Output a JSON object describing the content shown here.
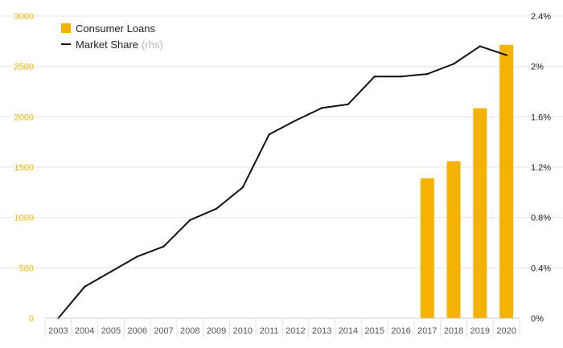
{
  "chart_data": {
    "type": "bar+line",
    "categories": [
      "2003",
      "2004",
      "2005",
      "2006",
      "2007",
      "2008",
      "2009",
      "2010",
      "2011",
      "2012",
      "2013",
      "2014",
      "2015",
      "2016",
      "2017",
      "2018",
      "2019",
      "2020"
    ],
    "series": [
      {
        "name": "Consumer Loans",
        "type": "bar",
        "axis": "left",
        "color": "#F5B300",
        "values": [
          0,
          0,
          0,
          0,
          0,
          0,
          0,
          0,
          0,
          0,
          0,
          0,
          0,
          0,
          1390,
          1560,
          2085,
          2715
        ]
      },
      {
        "name": "Market Share",
        "type": "line",
        "axis": "right",
        "color": "#111111",
        "values": [
          0.0,
          0.25,
          0.37,
          0.49,
          0.57,
          0.78,
          0.87,
          1.04,
          1.46,
          1.57,
          1.67,
          1.7,
          1.92,
          1.92,
          1.94,
          2.02,
          2.16,
          2.09
        ]
      }
    ],
    "legend": {
      "position": "top-left",
      "items": [
        {
          "label": "Consumer Loans",
          "note": "",
          "marker": "square",
          "color": "#F5B300"
        },
        {
          "label": "Market Share",
          "note": "(rhs)",
          "marker": "line",
          "color": "#111111"
        }
      ]
    },
    "y_left": {
      "ylim": [
        0,
        3000
      ],
      "ticks": [
        0,
        500,
        1000,
        1500,
        2000,
        2500,
        3000
      ],
      "tick_labels": [
        "0",
        "500",
        "1000",
        "1500",
        "2000",
        "2500",
        "3000"
      ],
      "color": "#F5B300"
    },
    "y_right": {
      "ylim": [
        0,
        2.4
      ],
      "ticks": [
        0,
        0.4,
        0.8,
        1.2,
        1.6,
        2.0,
        2.4
      ],
      "tick_labels": [
        "0%",
        "0.4%",
        "0.8%",
        "1.2%",
        "1.6%",
        "2%",
        "2.4%"
      ],
      "color": "#222222"
    },
    "grid": true
  }
}
